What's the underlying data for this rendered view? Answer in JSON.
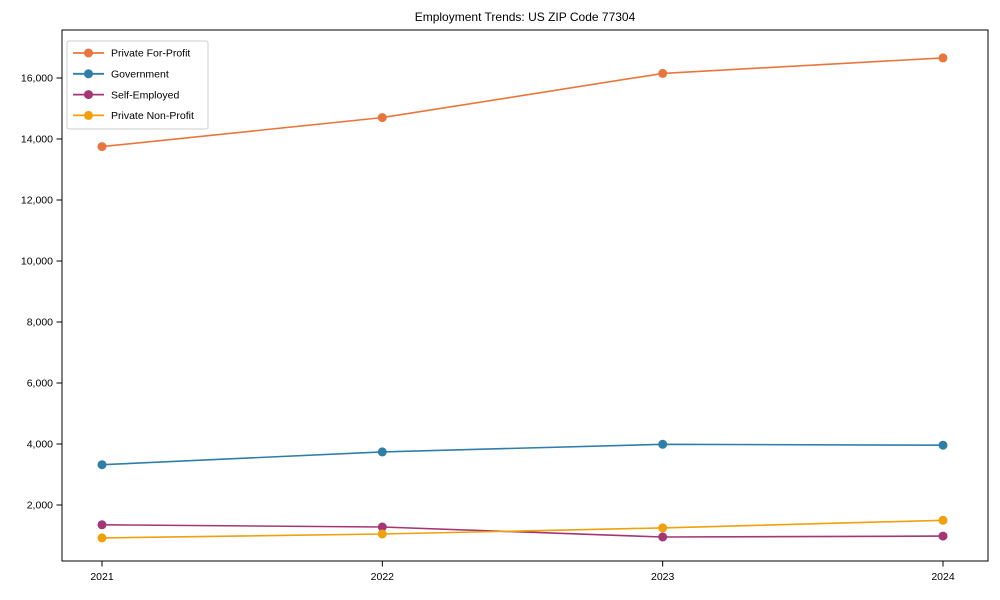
{
  "page": {
    "title": "Employment Trends: US ZIP Code 77304"
  },
  "chart_data": {
    "type": "line",
    "title": "Employment Trends: US ZIP Code 77304",
    "x": [
      2021,
      2022,
      2023,
      2024
    ],
    "xticklabels": [
      "2021",
      "2022",
      "2023",
      "2024"
    ],
    "yticks": [
      2000,
      4000,
      6000,
      8000,
      10000,
      12000,
      14000,
      16000
    ],
    "ytick_labels": [
      "2,000",
      "4,000",
      "6,000",
      "8,000",
      "10,000",
      "12,000",
      "14,000",
      "16,000"
    ],
    "ylim": [
      160,
      17580
    ],
    "xlabel": "",
    "ylabel": "",
    "grid": false,
    "legend_position": "upper left",
    "series": [
      {
        "name": "Private For-Profit",
        "color": "#e8763c",
        "values": [
          13750,
          14700,
          16150,
          16660
        ]
      },
      {
        "name": "Government",
        "color": "#2e7fa8",
        "values": [
          3320,
          3740,
          3990,
          3960
        ]
      },
      {
        "name": "Self-Employed",
        "color": "#a43675",
        "values": [
          1350,
          1280,
          950,
          980
        ]
      },
      {
        "name": "Private Non-Profit",
        "color": "#efa00b",
        "values": [
          920,
          1050,
          1250,
          1500
        ]
      }
    ]
  }
}
